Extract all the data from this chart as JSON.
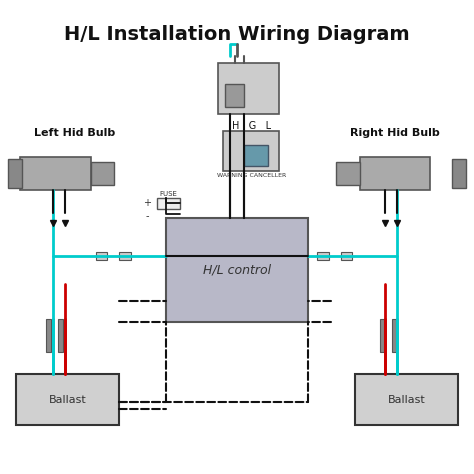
{
  "title": "H/L Installation Wiring Diagram",
  "title_fontsize": 14,
  "title_fontweight": "bold",
  "background_color": "#ffffff",
  "left_label": "Left Hid Bulb",
  "right_label": "Right Hid Bulb",
  "center_label": "H/L control",
  "ballast_label": "Ballast",
  "fuse_label": "FUSE",
  "plus_label": "+",
  "minus_label": "-",
  "hgl_label": "H   G   L",
  "warning_label": "WARNING CANCELLER",
  "cyan_color": "#00cccc",
  "red_color": "#cc0000",
  "black_color": "#111111",
  "gray_color": "#888888",
  "dashed_color": "#111111",
  "box_fill": "#d0d0d0",
  "hl_box_fill": "#b8b8c8",
  "relay_fill": "#aaaaaa"
}
